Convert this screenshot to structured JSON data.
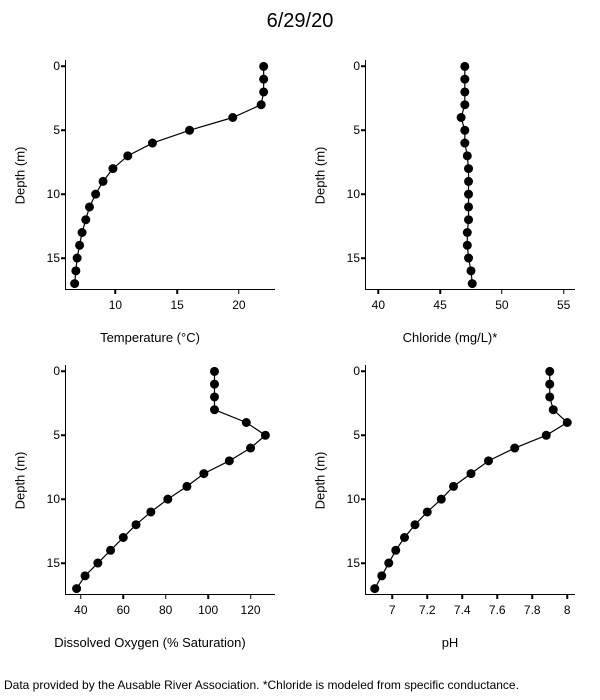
{
  "title": "6/29/20",
  "footer": "Data provided by the Ausable River Association. *Chloride is modeled from specific conductance.",
  "color_point": "#000000",
  "color_line": "#000000",
  "color_axis": "#000000",
  "color_bg": "#ffffff",
  "marker_radius": 4.5,
  "line_width": 1.2,
  "panels": [
    {
      "xlabel": "Temperature (°C)",
      "ylabel": "Depth (m)",
      "xlim": [
        6,
        23
      ],
      "ylim": [
        17.5,
        -0.5
      ],
      "xticks": [
        10,
        15,
        20
      ],
      "yticks": [
        0,
        5,
        10,
        15
      ],
      "data": [
        {
          "y": 0,
          "x": 22.0
        },
        {
          "y": 1,
          "x": 22.0
        },
        {
          "y": 2,
          "x": 22.0
        },
        {
          "y": 3,
          "x": 21.8
        },
        {
          "y": 4,
          "x": 19.5
        },
        {
          "y": 5,
          "x": 16.0
        },
        {
          "y": 6,
          "x": 13.0
        },
        {
          "y": 7,
          "x": 11.0
        },
        {
          "y": 8,
          "x": 9.8
        },
        {
          "y": 9,
          "x": 9.0
        },
        {
          "y": 10,
          "x": 8.4
        },
        {
          "y": 11,
          "x": 7.9
        },
        {
          "y": 12,
          "x": 7.6
        },
        {
          "y": 13,
          "x": 7.3
        },
        {
          "y": 14,
          "x": 7.1
        },
        {
          "y": 15,
          "x": 6.9
        },
        {
          "y": 16,
          "x": 6.8
        },
        {
          "y": 17,
          "x": 6.7
        }
      ]
    },
    {
      "xlabel": "Chloride (mg/L)*",
      "ylabel": "Depth (m)",
      "xlim": [
        39,
        56
      ],
      "ylim": [
        17.5,
        -0.5
      ],
      "xticks": [
        40,
        45,
        50,
        55
      ],
      "yticks": [
        0,
        5,
        10,
        15
      ],
      "data": [
        {
          "y": 0,
          "x": 47.0
        },
        {
          "y": 1,
          "x": 47.0
        },
        {
          "y": 2,
          "x": 47.0
        },
        {
          "y": 3,
          "x": 47.0
        },
        {
          "y": 4,
          "x": 46.7
        },
        {
          "y": 5,
          "x": 47.0
        },
        {
          "y": 6,
          "x": 47.0
        },
        {
          "y": 7,
          "x": 47.2
        },
        {
          "y": 8,
          "x": 47.3
        },
        {
          "y": 9,
          "x": 47.3
        },
        {
          "y": 10,
          "x": 47.3
        },
        {
          "y": 11,
          "x": 47.3
        },
        {
          "y": 12,
          "x": 47.3
        },
        {
          "y": 13,
          "x": 47.2
        },
        {
          "y": 14,
          "x": 47.2
        },
        {
          "y": 15,
          "x": 47.3
        },
        {
          "y": 16,
          "x": 47.5
        },
        {
          "y": 17,
          "x": 47.6
        }
      ]
    },
    {
      "xlabel": "Dissolved Oxygen (% Saturation)",
      "ylabel": "Depth (m)",
      "xlim": [
        33,
        132
      ],
      "ylim": [
        17.5,
        -0.5
      ],
      "xticks": [
        40,
        60,
        80,
        100,
        120
      ],
      "yticks": [
        0,
        5,
        10,
        15
      ],
      "data": [
        {
          "y": 0,
          "x": 103
        },
        {
          "y": 1,
          "x": 103
        },
        {
          "y": 2,
          "x": 103
        },
        {
          "y": 3,
          "x": 103
        },
        {
          "y": 4,
          "x": 118
        },
        {
          "y": 5,
          "x": 127
        },
        {
          "y": 6,
          "x": 120
        },
        {
          "y": 7,
          "x": 110
        },
        {
          "y": 8,
          "x": 98
        },
        {
          "y": 9,
          "x": 90
        },
        {
          "y": 10,
          "x": 81
        },
        {
          "y": 11,
          "x": 73
        },
        {
          "y": 12,
          "x": 66
        },
        {
          "y": 13,
          "x": 60
        },
        {
          "y": 14,
          "x": 54
        },
        {
          "y": 15,
          "x": 48
        },
        {
          "y": 16,
          "x": 42
        },
        {
          "y": 17,
          "x": 38
        }
      ]
    },
    {
      "xlabel": "pH",
      "ylabel": "Depth (m)",
      "xlim": [
        6.85,
        8.05
      ],
      "ylim": [
        17.5,
        -0.5
      ],
      "xticks": [
        7.0,
        7.2,
        7.4,
        7.6,
        7.8,
        8.0
      ],
      "yticks": [
        0,
        5,
        10,
        15
      ],
      "data": [
        {
          "y": 0,
          "x": 7.9
        },
        {
          "y": 1,
          "x": 7.9
        },
        {
          "y": 2,
          "x": 7.9
        },
        {
          "y": 3,
          "x": 7.92
        },
        {
          "y": 4,
          "x": 8.0
        },
        {
          "y": 5,
          "x": 7.88
        },
        {
          "y": 6,
          "x": 7.7
        },
        {
          "y": 7,
          "x": 7.55
        },
        {
          "y": 8,
          "x": 7.45
        },
        {
          "y": 9,
          "x": 7.35
        },
        {
          "y": 10,
          "x": 7.28
        },
        {
          "y": 11,
          "x": 7.2
        },
        {
          "y": 12,
          "x": 7.13
        },
        {
          "y": 13,
          "x": 7.07
        },
        {
          "y": 14,
          "x": 7.02
        },
        {
          "y": 15,
          "x": 6.98
        },
        {
          "y": 16,
          "x": 6.94
        },
        {
          "y": 17,
          "x": 6.9
        }
      ]
    }
  ]
}
